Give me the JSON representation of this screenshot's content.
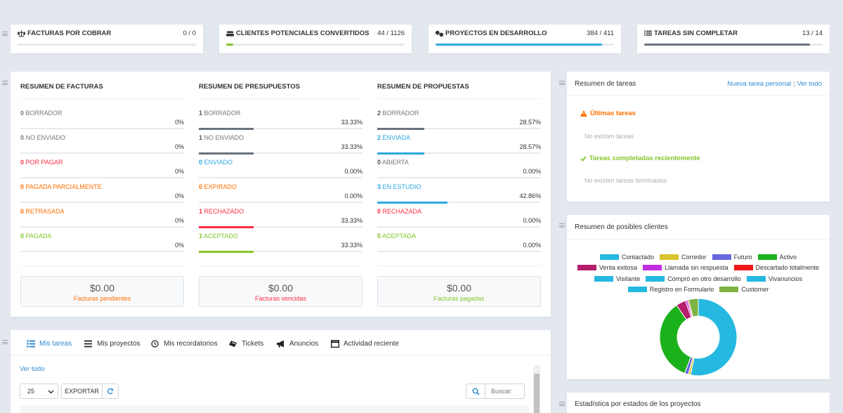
{
  "stats": [
    {
      "title": "FACTURAS POR COBRAR",
      "count": "0 / 0",
      "progress": 0,
      "color": "#e7eaee",
      "icon": "balance-scale-icon"
    },
    {
      "title": "CLIENTES POTENCIALES CONVERTIDOS",
      "count": "44 / 1126",
      "progress": 0.039,
      "color": "#84c529",
      "icon": "users-icon"
    },
    {
      "title": "PROYECTOS EN DESARROLLO",
      "count": "384 / 411",
      "progress": 0.934,
      "color": "#2ea8e0",
      "icon": "cubes-icon"
    },
    {
      "title": "TAREAS SIN COMPLETAR",
      "count": "13 / 14",
      "progress": 0.929,
      "color": "#6b737c",
      "icon": "list-icon"
    }
  ],
  "summary": {
    "columns": [
      {
        "title": "RESUMEN DE FACTURAS",
        "rows": [
          {
            "count": "0",
            "label": "BORRADOR",
            "pct": "0%",
            "value": 0,
            "color": "#777777",
            "bar": "#6b737c"
          },
          {
            "count": "0",
            "label": "NO ENVIADO",
            "pct": "0%",
            "value": 0,
            "color": "#777777",
            "bar": "#6b737c"
          },
          {
            "count": "0",
            "label": "POR PAGAR",
            "pct": "0%",
            "value": 0,
            "color": "#fc2d42",
            "bar": "#fc2d42"
          },
          {
            "count": "0",
            "label": "PAGADA PARCIALMENTE",
            "pct": "0%",
            "value": 0,
            "color": "#ff6f00",
            "bar": "#ff6f00"
          },
          {
            "count": "0",
            "label": "RETRASADA",
            "pct": "0%",
            "value": 0,
            "color": "#ff6f00",
            "bar": "#ff6f00"
          },
          {
            "count": "0",
            "label": "PAGADA",
            "pct": "0%",
            "value": 0,
            "color": "#84c529",
            "bar": "#84c529"
          }
        ],
        "total": {
          "amount": "$0.00",
          "label": "Facturas pendientes",
          "color": "#ff6f00"
        }
      },
      {
        "title": "RESUMEN DE PRESUPUESTOS",
        "rows": [
          {
            "count": "1",
            "label": "BORRADOR",
            "pct": "33.33%",
            "value": 33.33,
            "color": "#777777",
            "bar": "#6b737c"
          },
          {
            "count": "1",
            "label": "NO ENVIADO",
            "pct": "33.33%",
            "value": 33.33,
            "color": "#777777",
            "bar": "#6b737c"
          },
          {
            "count": "0",
            "label": "ENVIADO",
            "pct": "0.00%",
            "value": 0,
            "color": "#2ea8e0",
            "bar": "#2ea8e0"
          },
          {
            "count": "0",
            "label": "EXPIRADO",
            "pct": "0.00%",
            "value": 0,
            "color": "#ff6f00",
            "bar": "#ff6f00"
          },
          {
            "count": "1",
            "label": "RECHAZADO",
            "pct": "33.33%",
            "value": 33.33,
            "color": "#fc2d42",
            "bar": "#fc2d42"
          },
          {
            "count": "1",
            "label": "ACEPTADO",
            "pct": "33.33%",
            "value": 33.33,
            "color": "#84c529",
            "bar": "#84c529"
          }
        ],
        "total": {
          "amount": "$0.00",
          "label": "Facturas vencidas",
          "color": "#fc2d42"
        }
      },
      {
        "title": "RESUMEN DE PROPUESTAS",
        "rows": [
          {
            "count": "2",
            "label": "BORRADOR",
            "pct": "28.57%",
            "value": 28.57,
            "color": "#777777",
            "bar": "#6b737c"
          },
          {
            "count": "2",
            "label": "ENVIADA",
            "pct": "28.57%",
            "value": 28.57,
            "color": "#2ea8e0",
            "bar": "#2ea8e0"
          },
          {
            "count": "0",
            "label": "ABIERTA",
            "pct": "0.00%",
            "value": 0,
            "color": "#777777",
            "bar": "#6b737c"
          },
          {
            "count": "3",
            "label": "EN ESTUDIO",
            "pct": "42.86%",
            "value": 42.86,
            "color": "#2ea8e0",
            "bar": "#2ea8e0"
          },
          {
            "count": "0",
            "label": "RECHAZADA",
            "pct": "0.00%",
            "value": 0,
            "color": "#fc2d42",
            "bar": "#fc2d42"
          },
          {
            "count": "0",
            "label": "ACEPTADA",
            "pct": "0.00%",
            "value": 0,
            "color": "#84c529",
            "bar": "#84c529"
          }
        ],
        "total": {
          "amount": "$0.00",
          "label": "Facturas pagadas",
          "color": "#84c529"
        }
      }
    ]
  },
  "tasks": {
    "title": "Resumen de tareas",
    "new_link": "Nueva tarea personal",
    "all_link": "Ver todo",
    "sep": "|",
    "latest_title": "Últimas tareas",
    "latest_empty": "No existen tareas",
    "completed_title": "Tareas completadas recientemente",
    "completed_empty": "No existen tareas terminadas"
  },
  "leads": {
    "title": "Resumen de posibles clientes",
    "legend": [
      {
        "name": "Contactado",
        "color": "#25b8e0"
      },
      {
        "name": "Corredor",
        "color": "#d8c42c"
      },
      {
        "name": "Futuro",
        "color": "#6a66e0"
      },
      {
        "name": "Activo",
        "color": "#1bb11b"
      },
      {
        "name": "Venta exitosa",
        "color": "#b41e6d"
      },
      {
        "name": "Llamada sin respuesta",
        "color": "#c32ee0"
      },
      {
        "name": "Descartado totalmente",
        "color": "#ee1a1a"
      },
      {
        "name": "Visitante",
        "color": "#25b8e0"
      },
      {
        "name": "Compró en otro desarrollo",
        "color": "#25b8e0"
      },
      {
        "name": "Vivanuncios",
        "color": "#25b8e0"
      },
      {
        "name": "Registro en Formulario",
        "color": "#25b8e0"
      },
      {
        "name": "Customer",
        "color": "#7cb342"
      }
    ]
  },
  "chart_data": {
    "type": "pie",
    "categories": [
      "Contactado",
      "Corredor",
      "Futuro",
      "Activo",
      "Venta exitosa",
      "Llamada sin respuesta",
      "Descartado totalmente",
      "Customer"
    ],
    "values": [
      52,
      1,
      1.5,
      34,
      4,
      0.8,
      0.5,
      4
    ],
    "colors": [
      "#25b8e0",
      "#d8c42c",
      "#6a66e0",
      "#1bb11b",
      "#b41e6d",
      "#c32ee0",
      "#ee1a1a",
      "#7cb342"
    ],
    "donut": true,
    "title": "",
    "legend": "top"
  },
  "project_stats": {
    "title": "Estadística por estados de los proyectos"
  },
  "bottom": {
    "tabs": [
      {
        "label": "Mis tareas",
        "icon": "tasks-icon",
        "active": true
      },
      {
        "label": "Mis proyectos",
        "icon": "bars-icon",
        "active": false
      },
      {
        "label": "Mis recordatorios",
        "icon": "clock-icon",
        "active": false
      },
      {
        "label": "Tickets",
        "icon": "ticket-icon",
        "active": false
      },
      {
        "label": "Anuncios",
        "icon": "bullhorn-icon",
        "active": false
      },
      {
        "label": "Actividad reciente",
        "icon": "window-icon",
        "active": false
      }
    ],
    "view_all": "Ver todo",
    "page_size": "25",
    "export": "EXPORTAR",
    "search_placeholder": "Buscar:"
  }
}
